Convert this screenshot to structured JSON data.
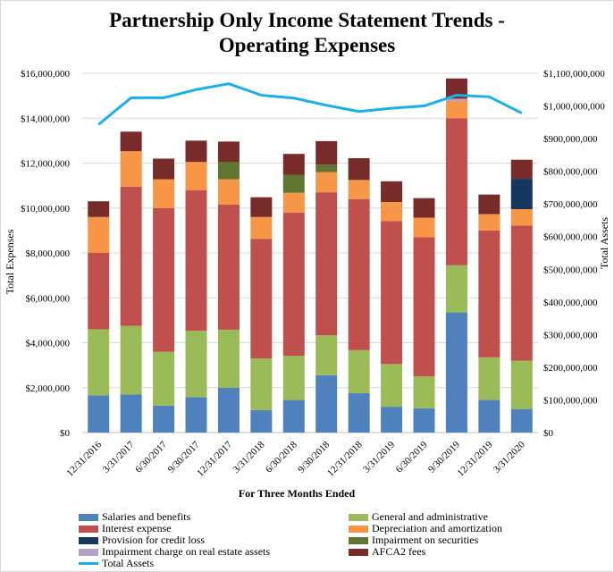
{
  "chart_data": {
    "type": "bar",
    "title_line1": "Partnership Only Income Statement Trends -",
    "title_line2": "Operating Expenses",
    "xlabel": "For Three Months  Ended",
    "ylabel_left": "Total Expenses",
    "ylabel_right": "Total Assets",
    "ylim_left": [
      0,
      16000000
    ],
    "ylim_right": [
      0,
      1100000000
    ],
    "left_ticks": [
      "$0",
      "$2,000,000",
      "$4,000,000",
      "$6,000,000",
      "$8,000,000",
      "$10,000,000",
      "$12,000,000",
      "$14,000,000",
      "$16,000,000"
    ],
    "right_ticks": [
      "$0",
      "$100,000,000",
      "$200,000,000",
      "$300,000,000",
      "$400,000,000",
      "$500,000,000",
      "$600,000,000",
      "$700,000,000",
      "$800,000,000",
      "$900,000,000",
      "$1,000,000,000",
      "$1,100,000,000"
    ],
    "categories": [
      "12/31/2016",
      "3/31/2017",
      "6/30/2017",
      "9/30/2017",
      "12/31/2017",
      "3/31/2018",
      "6/30/2018",
      "9/30/2018",
      "12/31/2018",
      "3/31/2019",
      "6/30/2019",
      "9/30/2019",
      "12/31/2019",
      "3/31/2020"
    ],
    "series": [
      {
        "name": "Salaries and benefits",
        "color": "#4f81bd",
        "values": [
          1650000,
          1700000,
          1200000,
          1580000,
          2000000,
          1000000,
          1450000,
          2550000,
          1750000,
          1150000,
          1080000,
          5350000,
          1450000,
          1050000
        ]
      },
      {
        "name": "General and administrative",
        "color": "#9bbb59",
        "values": [
          2950000,
          3050000,
          2400000,
          2950000,
          2580000,
          2300000,
          1970000,
          1780000,
          1920000,
          1900000,
          1420000,
          2100000,
          1900000,
          2150000
        ]
      },
      {
        "name": "Interest expense",
        "color": "#c0504d",
        "values": [
          3400000,
          6200000,
          6400000,
          6270000,
          5570000,
          5330000,
          6380000,
          6370000,
          6730000,
          6370000,
          6200000,
          6550000,
          5650000,
          6020000
        ]
      },
      {
        "name": "Depreciation and amortization",
        "color": "#f79646",
        "values": [
          1600000,
          1580000,
          1280000,
          1250000,
          1130000,
          970000,
          880000,
          900000,
          850000,
          850000,
          870000,
          770000,
          730000,
          730000
        ]
      },
      {
        "name": "Provision for credit loss",
        "color": "#17375e",
        "values": [
          0,
          0,
          0,
          0,
          0,
          0,
          0,
          0,
          0,
          0,
          0,
          0,
          0,
          1350000
        ]
      },
      {
        "name": "Impairment on securities",
        "color": "#5f7530",
        "values": [
          0,
          0,
          0,
          0,
          780000,
          0,
          800000,
          330000,
          0,
          0,
          0,
          0,
          0,
          0
        ]
      },
      {
        "name": "Impairment charge on real estate assets",
        "color": "#b3a2c7",
        "values": [
          0,
          0,
          0,
          0,
          0,
          0,
          0,
          0,
          0,
          0,
          0,
          100000,
          0,
          0
        ]
      },
      {
        "name": "AFCA2 fees",
        "color": "#772c2a",
        "values": [
          700000,
          870000,
          920000,
          950000,
          900000,
          880000,
          930000,
          1050000,
          970000,
          920000,
          870000,
          900000,
          870000,
          850000
        ]
      }
    ],
    "line_series": {
      "name": "Total Assets",
      "color": "#1ab0e8",
      "axis": "right",
      "values": [
        943000000,
        1025000000,
        1025000000,
        1050000000,
        1068000000,
        1033000000,
        1024000000,
        1002000000,
        983000000,
        993000000,
        1000000000,
        1033000000,
        1028000000,
        978000000
      ]
    },
    "legend_order": [
      "Salaries and benefits",
      "General and administrative",
      "Interest expense",
      "Depreciation and amortization",
      "Provision for credit loss",
      "Impairment on securities",
      "Impairment charge on real estate assets",
      "AFCA2 fees",
      "Total Assets"
    ],
    "legend_placement": "bottom",
    "grid": true
  }
}
